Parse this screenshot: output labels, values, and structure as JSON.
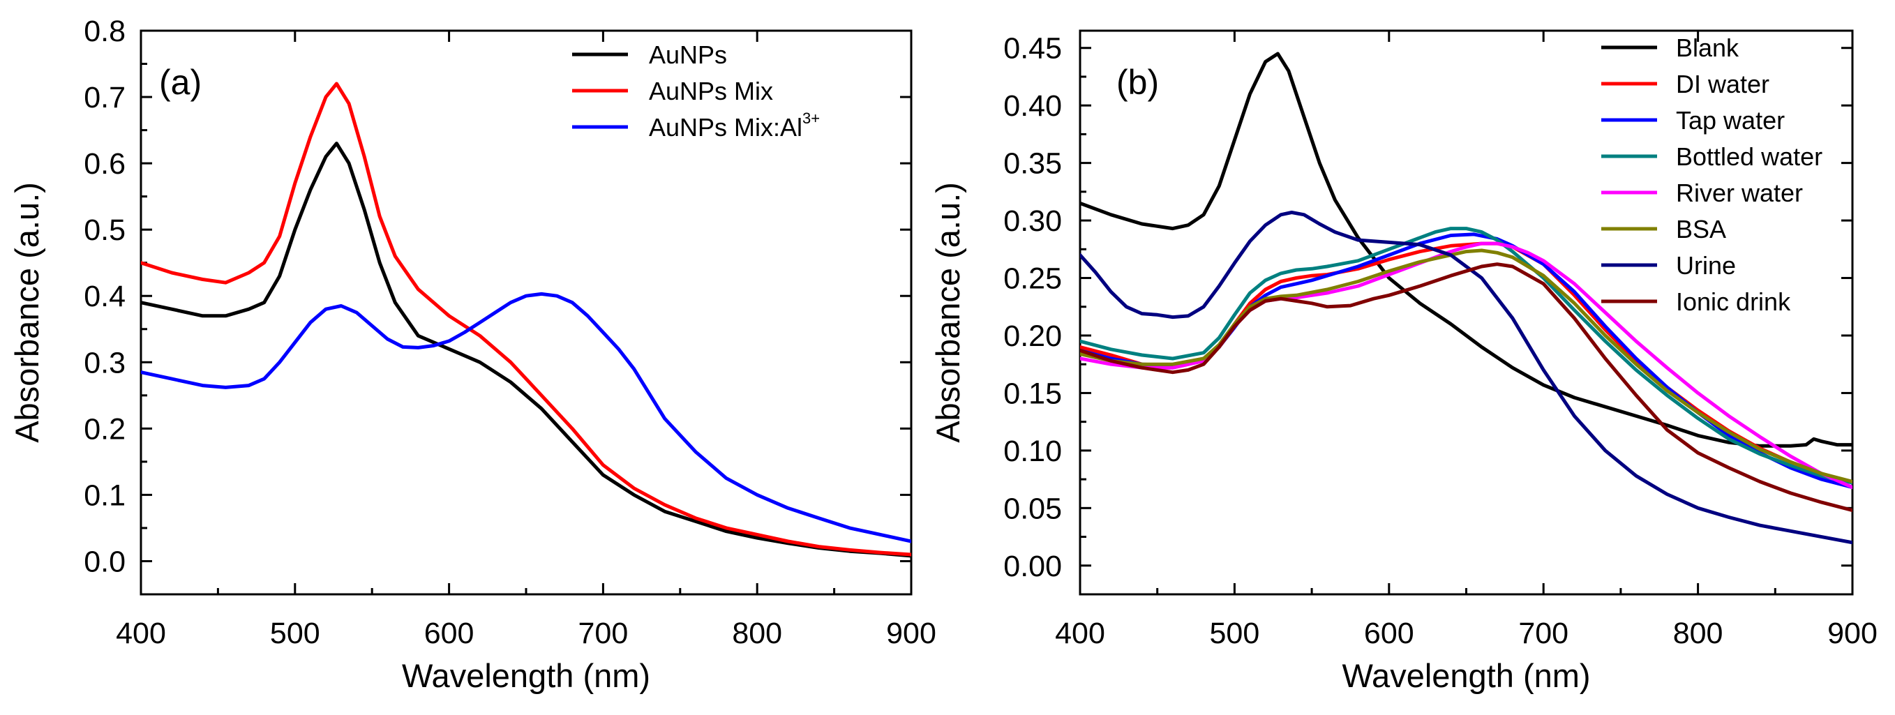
{
  "chart_data": [
    {
      "type": "line",
      "panel_label": "(a)",
      "xlabel": "Wavelength (nm)",
      "ylabel": "Absorbance (a.u.)",
      "xlim": [
        400,
        900
      ],
      "ylim": [
        -0.05,
        0.8
      ],
      "xticks": [
        "400",
        "500",
        "600",
        "700",
        "800",
        "900"
      ],
      "yticks": [
        "0.0",
        "0.1",
        "0.2",
        "0.3",
        "0.4",
        "0.5",
        "0.6",
        "0.7",
        "0.8"
      ],
      "legend_position": "top-right",
      "series": [
        {
          "name": "AuNPs",
          "color": "#000000",
          "x": [
            400,
            420,
            440,
            455,
            470,
            480,
            490,
            500,
            510,
            520,
            527,
            535,
            545,
            555,
            565,
            580,
            600,
            620,
            640,
            660,
            680,
            700,
            720,
            740,
            760,
            780,
            800,
            820,
            840,
            860,
            880,
            900
          ],
          "y": [
            0.39,
            0.38,
            0.37,
            0.37,
            0.38,
            0.39,
            0.43,
            0.5,
            0.56,
            0.61,
            0.63,
            0.6,
            0.53,
            0.45,
            0.39,
            0.34,
            0.32,
            0.3,
            0.27,
            0.23,
            0.18,
            0.13,
            0.1,
            0.075,
            0.06,
            0.045,
            0.035,
            0.027,
            0.02,
            0.015,
            0.012,
            0.008
          ]
        },
        {
          "name": "AuNPs Mix",
          "color": "#ff0000",
          "x": [
            400,
            420,
            440,
            455,
            470,
            480,
            490,
            500,
            510,
            520,
            527,
            535,
            545,
            555,
            565,
            580,
            600,
            620,
            640,
            660,
            680,
            700,
            720,
            740,
            760,
            780,
            800,
            820,
            840,
            860,
            880,
            900
          ],
          "y": [
            0.45,
            0.435,
            0.425,
            0.42,
            0.435,
            0.45,
            0.49,
            0.57,
            0.64,
            0.7,
            0.72,
            0.69,
            0.61,
            0.52,
            0.46,
            0.41,
            0.37,
            0.34,
            0.3,
            0.25,
            0.2,
            0.145,
            0.11,
            0.085,
            0.065,
            0.05,
            0.04,
            0.03,
            0.022,
            0.017,
            0.013,
            0.01
          ]
        },
        {
          "name": "AuNPs Mix:Al³⁺",
          "color": "#0000ff",
          "x": [
            400,
            420,
            440,
            455,
            470,
            480,
            490,
            500,
            510,
            520,
            530,
            540,
            550,
            560,
            570,
            580,
            590,
            600,
            610,
            620,
            630,
            640,
            650,
            660,
            670,
            680,
            690,
            700,
            710,
            720,
            740,
            760,
            780,
            800,
            820,
            840,
            860,
            880,
            900
          ],
          "y": [
            0.285,
            0.275,
            0.265,
            0.262,
            0.265,
            0.275,
            0.3,
            0.33,
            0.36,
            0.38,
            0.385,
            0.375,
            0.355,
            0.335,
            0.323,
            0.322,
            0.325,
            0.332,
            0.345,
            0.36,
            0.375,
            0.39,
            0.4,
            0.403,
            0.4,
            0.39,
            0.37,
            0.345,
            0.32,
            0.29,
            0.215,
            0.165,
            0.125,
            0.1,
            0.08,
            0.065,
            0.05,
            0.04,
            0.03
          ]
        }
      ]
    },
    {
      "type": "line",
      "panel_label": "(b)",
      "xlabel": "Wavelength (nm)",
      "ylabel": "Absorbance (a.u.)",
      "xlim": [
        400,
        900
      ],
      "ylim": [
        -0.025,
        0.465
      ],
      "xticks": [
        "400",
        "500",
        "600",
        "700",
        "800",
        "900"
      ],
      "yticks": [
        "0.00",
        "0.05",
        "0.10",
        "0.15",
        "0.20",
        "0.25",
        "0.30",
        "0.35",
        "0.40",
        "0.45"
      ],
      "legend_position": "top-right",
      "series": [
        {
          "name": "Blank",
          "color": "#000000",
          "x": [
            400,
            420,
            440,
            460,
            470,
            480,
            490,
            500,
            510,
            520,
            528,
            535,
            545,
            555,
            565,
            580,
            600,
            620,
            640,
            660,
            680,
            700,
            720,
            740,
            760,
            780,
            800,
            820,
            840,
            860,
            870,
            875,
            880,
            890,
            900
          ],
          "y": [
            0.315,
            0.305,
            0.297,
            0.293,
            0.296,
            0.305,
            0.33,
            0.37,
            0.41,
            0.438,
            0.445,
            0.43,
            0.39,
            0.35,
            0.318,
            0.285,
            0.25,
            0.228,
            0.21,
            0.19,
            0.172,
            0.157,
            0.146,
            0.138,
            0.13,
            0.122,
            0.113,
            0.107,
            0.104,
            0.104,
            0.105,
            0.11,
            0.108,
            0.105,
            0.105
          ]
        },
        {
          "name": "DI water",
          "color": "#ff0000",
          "x": [
            400,
            420,
            440,
            460,
            480,
            490,
            500,
            510,
            520,
            530,
            540,
            550,
            560,
            580,
            600,
            620,
            640,
            660,
            670,
            680,
            700,
            720,
            740,
            760,
            780,
            800,
            820,
            840,
            860,
            880,
            900
          ],
          "y": [
            0.19,
            0.183,
            0.175,
            0.172,
            0.178,
            0.19,
            0.21,
            0.228,
            0.24,
            0.247,
            0.25,
            0.252,
            0.253,
            0.258,
            0.266,
            0.273,
            0.278,
            0.28,
            0.28,
            0.277,
            0.262,
            0.235,
            0.205,
            0.178,
            0.155,
            0.135,
            0.117,
            0.102,
            0.09,
            0.08,
            0.072
          ]
        },
        {
          "name": "Tap water",
          "color": "#0000ff",
          "x": [
            400,
            420,
            440,
            460,
            480,
            490,
            500,
            510,
            520,
            530,
            540,
            550,
            560,
            580,
            600,
            620,
            640,
            655,
            670,
            680,
            700,
            720,
            740,
            760,
            780,
            800,
            820,
            840,
            860,
            880,
            900
          ],
          "y": [
            0.187,
            0.18,
            0.175,
            0.174,
            0.18,
            0.19,
            0.207,
            0.225,
            0.235,
            0.242,
            0.245,
            0.248,
            0.252,
            0.26,
            0.27,
            0.28,
            0.287,
            0.288,
            0.284,
            0.278,
            0.262,
            0.238,
            0.208,
            0.18,
            0.155,
            0.133,
            0.113,
            0.098,
            0.085,
            0.075,
            0.068
          ]
        },
        {
          "name": "Bottled water",
          "color": "#008080",
          "x": [
            400,
            420,
            440,
            460,
            480,
            490,
            500,
            510,
            520,
            530,
            540,
            550,
            560,
            580,
            600,
            620,
            630,
            640,
            650,
            660,
            670,
            680,
            700,
            720,
            740,
            760,
            780,
            800,
            820,
            840,
            860,
            880,
            900
          ],
          "y": [
            0.195,
            0.188,
            0.183,
            0.18,
            0.185,
            0.198,
            0.218,
            0.237,
            0.248,
            0.254,
            0.257,
            0.258,
            0.26,
            0.265,
            0.275,
            0.285,
            0.29,
            0.293,
            0.293,
            0.29,
            0.283,
            0.273,
            0.25,
            0.222,
            0.195,
            0.17,
            0.148,
            0.128,
            0.11,
            0.097,
            0.087,
            0.078,
            0.072
          ]
        },
        {
          "name": "River water",
          "color": "#ff00ff",
          "x": [
            400,
            420,
            440,
            460,
            480,
            490,
            500,
            510,
            520,
            530,
            540,
            560,
            580,
            600,
            620,
            640,
            650,
            660,
            670,
            680,
            690,
            700,
            720,
            740,
            760,
            780,
            800,
            820,
            840,
            860,
            880,
            900
          ],
          "y": [
            0.18,
            0.175,
            0.172,
            0.172,
            0.178,
            0.19,
            0.208,
            0.222,
            0.23,
            0.232,
            0.233,
            0.237,
            0.243,
            0.253,
            0.263,
            0.273,
            0.277,
            0.28,
            0.28,
            0.277,
            0.272,
            0.265,
            0.245,
            0.22,
            0.195,
            0.172,
            0.15,
            0.13,
            0.112,
            0.095,
            0.08,
            0.068
          ]
        },
        {
          "name": "BSA",
          "color": "#808000",
          "x": [
            400,
            420,
            440,
            460,
            480,
            490,
            500,
            510,
            520,
            530,
            540,
            560,
            580,
            600,
            620,
            640,
            650,
            660,
            670,
            680,
            700,
            720,
            740,
            760,
            780,
            800,
            820,
            840,
            860,
            880,
            900
          ],
          "y": [
            0.184,
            0.178,
            0.175,
            0.175,
            0.18,
            0.192,
            0.21,
            0.225,
            0.232,
            0.234,
            0.235,
            0.24,
            0.247,
            0.256,
            0.264,
            0.27,
            0.273,
            0.274,
            0.272,
            0.268,
            0.252,
            0.228,
            0.2,
            0.175,
            0.152,
            0.133,
            0.116,
            0.101,
            0.09,
            0.08,
            0.073
          ]
        },
        {
          "name": "Urine",
          "color": "#000080",
          "x": [
            400,
            410,
            420,
            430,
            440,
            450,
            460,
            470,
            480,
            490,
            500,
            510,
            520,
            530,
            537,
            545,
            555,
            565,
            580,
            600,
            620,
            640,
            660,
            680,
            700,
            720,
            740,
            760,
            780,
            800,
            820,
            840,
            860,
            880,
            900
          ],
          "y": [
            0.27,
            0.255,
            0.238,
            0.225,
            0.219,
            0.218,
            0.216,
            0.217,
            0.225,
            0.243,
            0.263,
            0.282,
            0.296,
            0.305,
            0.307,
            0.305,
            0.297,
            0.29,
            0.283,
            0.281,
            0.279,
            0.27,
            0.25,
            0.215,
            0.17,
            0.13,
            0.1,
            0.078,
            0.062,
            0.05,
            0.042,
            0.035,
            0.03,
            0.025,
            0.02
          ]
        },
        {
          "name": "Ionic drink",
          "color": "#800000",
          "x": [
            400,
            420,
            440,
            460,
            470,
            480,
            490,
            500,
            510,
            520,
            530,
            540,
            550,
            560,
            575,
            590,
            600,
            620,
            640,
            660,
            670,
            680,
            700,
            720,
            740,
            760,
            780,
            800,
            820,
            840,
            860,
            880,
            900
          ],
          "y": [
            0.187,
            0.178,
            0.172,
            0.168,
            0.17,
            0.175,
            0.19,
            0.208,
            0.222,
            0.23,
            0.232,
            0.23,
            0.228,
            0.225,
            0.226,
            0.232,
            0.235,
            0.243,
            0.252,
            0.26,
            0.262,
            0.26,
            0.245,
            0.215,
            0.18,
            0.148,
            0.118,
            0.098,
            0.085,
            0.073,
            0.063,
            0.055,
            0.048
          ]
        }
      ]
    }
  ]
}
